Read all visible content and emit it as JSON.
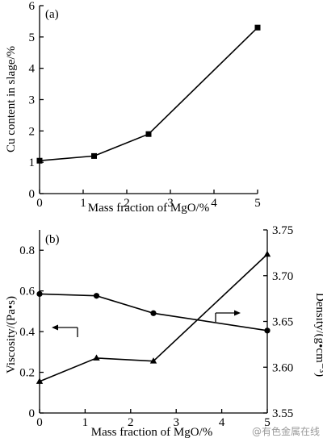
{
  "chart_data": [
    {
      "type": "line",
      "panel_label": "(a)",
      "xlabel": "Mass fraction of MgO/%",
      "ylabel": "Cu content in slage/%",
      "xlim": [
        0,
        5
      ],
      "ylim": [
        0,
        6
      ],
      "xticks": [
        0,
        1,
        2,
        3,
        4,
        5
      ],
      "yticks": [
        0,
        1,
        2,
        3,
        4,
        5,
        6
      ],
      "x": [
        0,
        1.25,
        2.5,
        5
      ],
      "series": [
        {
          "values": [
            1.05,
            1.2,
            1.9,
            5.3
          ],
          "marker": "square"
        }
      ]
    },
    {
      "type": "line",
      "panel_label": "(b)",
      "xlabel": "Mass fraction of MgO/%",
      "ylabel": "Viscosity/(Pa•s)",
      "ylabel_right": "Density/(g•cm⁻³)",
      "xlim": [
        0,
        5
      ],
      "ylim": [
        0,
        0.9
      ],
      "ylim_right": [
        3.55,
        3.75
      ],
      "xticks": [
        0,
        1,
        2,
        3,
        4,
        5
      ],
      "yticks": [
        0,
        0.2,
        0.4,
        0.6,
        0.8
      ],
      "yticks_right": [
        3.55,
        3.6,
        3.65,
        3.7,
        3.75
      ],
      "x": [
        0,
        1.25,
        2.5,
        5
      ],
      "series": [
        {
          "axis": "right",
          "values": [
            3.68,
            3.678,
            3.659,
            3.64
          ],
          "marker": "circle"
        },
        {
          "axis": "left",
          "values": [
            0.155,
            0.27,
            0.255,
            0.78
          ],
          "marker": "triangle"
        }
      ]
    }
  ],
  "watermark": "@有色金属在线"
}
